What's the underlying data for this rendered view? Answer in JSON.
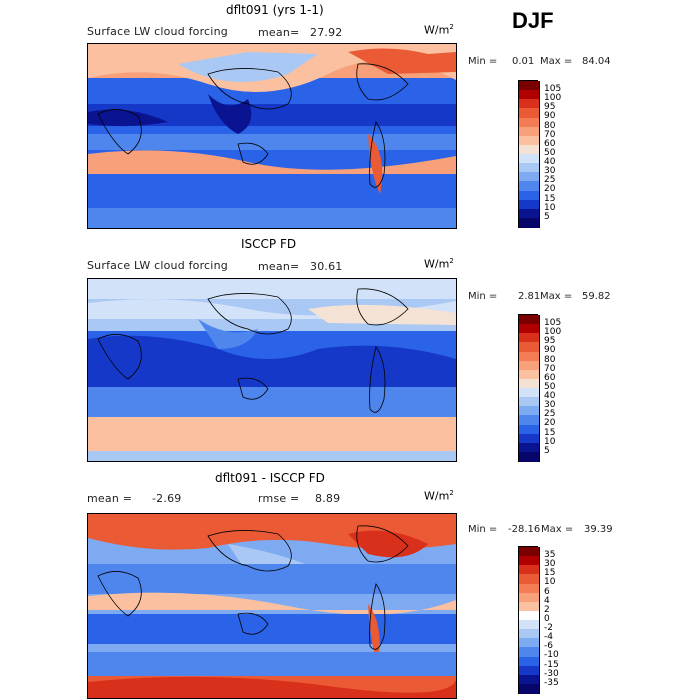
{
  "season": "DJF",
  "units_prefix": "W/m",
  "units_exp": "2",
  "panels": [
    {
      "title": "dflt091 (yrs 1-1)",
      "label_left": "Surface LW cloud forcing",
      "stat1_label": "mean=",
      "stat1_value": "27.92",
      "min_label": "Min =",
      "min_value": "0.01",
      "max_label": "Max =",
      "max_value": "84.04",
      "legend": [
        "105",
        "100",
        "95",
        "90",
        "80",
        "70",
        "60",
        "50",
        "40",
        "30",
        "25",
        "20",
        "15",
        "10",
        "5"
      ]
    },
    {
      "title": "ISCCP FD",
      "label_left": "Surface LW cloud forcing",
      "stat1_label": "mean=",
      "stat1_value": "30.61",
      "min_label": "Min =",
      "min_value": "2.81",
      "max_label": "Max =",
      "max_value": "59.82",
      "legend": [
        "105",
        "100",
        "95",
        "90",
        "80",
        "70",
        "60",
        "50",
        "40",
        "30",
        "25",
        "20",
        "15",
        "10",
        "5"
      ]
    },
    {
      "title": "dflt091 - ISCCP FD",
      "label_left": "mean =",
      "stat1_label": "",
      "stat1_value": "-2.69",
      "stat2_label": "rmse =",
      "stat2_value": "8.89",
      "min_label": "Min =",
      "min_value": "-28.16",
      "max_label": "Max =",
      "max_value": "39.39",
      "legend": [
        "35",
        "30",
        "15",
        "10",
        "6",
        "4",
        "2",
        "0",
        "-2",
        "-4",
        "-6",
        "-10",
        "-15",
        "-30",
        "-35"
      ]
    }
  ],
  "colors": {
    "abs_scale": [
      "#7a0000",
      "#b00000",
      "#d8301a",
      "#ea5a35",
      "#f47c55",
      "#f8a07a",
      "#fbc0a0",
      "#f4e2d4",
      "#d2e2f8",
      "#aac8f4",
      "#7eaaf2",
      "#4e86ee",
      "#2a62e8",
      "#1638c8",
      "#0a1490",
      "#05056a"
    ],
    "diff_scale": [
      "#7a0000",
      "#b00000",
      "#d8301a",
      "#ea5a35",
      "#f47c55",
      "#f8a07a",
      "#fbc0a0",
      "#ffffff",
      "#d2e2f8",
      "#aac8f4",
      "#7eaaf2",
      "#4e86ee",
      "#2a62e8",
      "#1638c8",
      "#0a1490",
      "#05056a"
    ]
  }
}
